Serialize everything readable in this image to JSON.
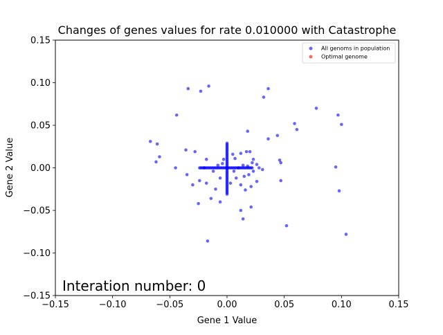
{
  "chart_data": {
    "type": "scatter",
    "title": "Changes of genes values for rate 0.010000 with Catastrophe",
    "xlabel": "Gene 1 Value",
    "ylabel": "Gene 2 Value",
    "xlim": [
      -0.15,
      0.15
    ],
    "ylim": [
      -0.15,
      0.15
    ],
    "x_ticks": [
      -0.15,
      -0.1,
      -0.05,
      0.0,
      0.05,
      0.1,
      0.15
    ],
    "x_tick_labels": [
      "−0.15",
      "−0.10",
      "−0.05",
      "0.00",
      "0.05",
      "0.10",
      "0.15"
    ],
    "y_ticks": [
      -0.15,
      -0.1,
      -0.05,
      0.0,
      0.05,
      0.1,
      0.15
    ],
    "y_tick_labels": [
      "−0.15",
      "−0.10",
      "−0.05",
      "0.00",
      "0.05",
      "0.10",
      "0.15"
    ],
    "grid": false,
    "legend_position": "top-right",
    "annotation": "Interation number: 0",
    "series": [
      {
        "name": "All genoms in population",
        "color": "#0000ff",
        "alpha": 0.6,
        "points": [
          [
            -0.034,
            0.093
          ],
          [
            -0.023,
            0.09
          ],
          [
            -0.016,
            0.096
          ],
          [
            0.036,
            0.093
          ],
          [
            0.032,
            0.083
          ],
          [
            -0.044,
            0.062
          ],
          [
            0.078,
            0.07
          ],
          [
            0.097,
            0.062
          ],
          [
            0.059,
            0.052
          ],
          [
            0.061,
            0.045
          ],
          [
            0.1,
            0.051
          ],
          [
            0.018,
            0.043
          ],
          [
            0.044,
            0.038
          ],
          [
            0.036,
            0.034
          ],
          [
            -0.067,
            0.031
          ],
          [
            -0.061,
            0.028
          ],
          [
            -0.036,
            0.021
          ],
          [
            -0.028,
            0.019
          ],
          [
            -0.059,
            0.013
          ],
          [
            -0.062,
            0.007
          ],
          [
            -0.018,
            0.01
          ],
          [
            0.012,
            0.017
          ],
          [
            0.017,
            0.019
          ],
          [
            0.02,
            0.019
          ],
          [
            0.005,
            0.016
          ],
          [
            0.023,
            0.01
          ],
          [
            0.046,
            0.009
          ],
          [
            0.047,
            0.006
          ],
          [
            0.026,
            0.004
          ],
          [
            0.022,
            0.006
          ],
          [
            -0.045,
            0.0
          ],
          [
            0.095,
            0.001
          ],
          [
            -0.035,
            -0.008
          ],
          [
            -0.03,
            -0.02
          ],
          [
            -0.024,
            -0.015
          ],
          [
            -0.018,
            -0.018
          ],
          [
            -0.01,
            -0.025
          ],
          [
            -0.006,
            -0.012
          ],
          [
            0.008,
            -0.012
          ],
          [
            0.012,
            -0.02
          ],
          [
            0.016,
            -0.026
          ],
          [
            0.021,
            -0.022
          ],
          [
            0.026,
            -0.016
          ],
          [
            0.047,
            -0.015
          ],
          [
            -0.025,
            -0.042
          ],
          [
            -0.014,
            -0.036
          ],
          [
            -0.006,
            -0.04
          ],
          [
            0.012,
            -0.05
          ],
          [
            0.021,
            -0.046
          ],
          [
            0.014,
            -0.06
          ],
          [
            0.052,
            -0.068
          ],
          [
            0.098,
            -0.027
          ],
          [
            -0.017,
            -0.086
          ],
          [
            0.104,
            -0.078
          ],
          [
            0.019,
            -0.008
          ],
          [
            0.023,
            -0.004
          ],
          [
            0.028,
            0.0
          ],
          [
            0.031,
            -0.002
          ],
          [
            -0.004,
            0.005
          ],
          [
            0.006,
            -0.004
          ],
          [
            0.014,
            0.003
          ],
          [
            -0.012,
            -0.004
          ],
          [
            -0.008,
            0.003
          ],
          [
            0.018,
            0.002
          ],
          [
            0.01,
            0.0
          ],
          [
            0.003,
            -0.018
          ],
          [
            -0.003,
            0.01
          ],
          [
            0.015,
            -0.01
          ],
          [
            -0.02,
            0.0
          ],
          [
            0.007,
            0.011
          ]
        ],
        "clusters": {
          "vertical_bar": {
            "x": 0.0,
            "y_range": [
              -0.031,
              0.029
            ],
            "count": 40
          },
          "horizontal_bar": {
            "y": 0.0,
            "x_range": [
              -0.024,
              0.022
            ],
            "count": 46
          }
        }
      },
      {
        "name": "Optimal genome",
        "color": "#ff0000",
        "alpha": 0.6,
        "points": []
      }
    ]
  }
}
